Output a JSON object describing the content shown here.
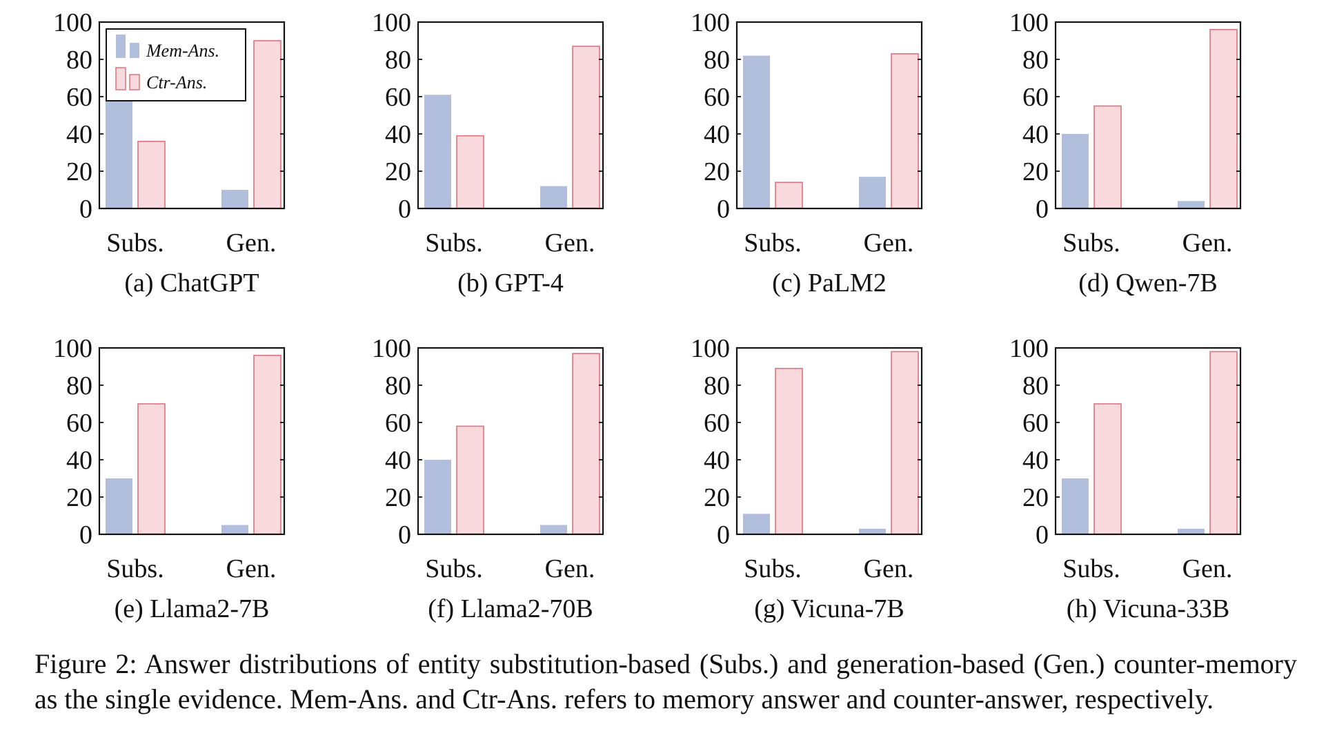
{
  "legend": {
    "mem_label": "Mem-Ans.",
    "ctr_label": "Ctr-Ans.",
    "mem_color": "#b2bfdc",
    "ctr_fill": "#f8d9dd",
    "ctr_stroke": "#e0717d"
  },
  "chart_data": [
    {
      "type": "bar",
      "subcaption": "(a) ChatGPT",
      "categories": [
        "Subs.",
        "Gen."
      ],
      "ylim": [
        0,
        100
      ],
      "yticks": [
        0,
        20,
        40,
        60,
        80,
        100
      ],
      "series": [
        {
          "name": "Mem-Ans.",
          "values": [
            94,
            10
          ]
        },
        {
          "name": "Ctr-Ans.",
          "values": [
            36,
            90
          ]
        }
      ],
      "legend": "top-left"
    },
    {
      "type": "bar",
      "subcaption": "(b) GPT-4",
      "categories": [
        "Subs.",
        "Gen."
      ],
      "ylim": [
        0,
        100
      ],
      "yticks": [
        0,
        20,
        40,
        60,
        80,
        100
      ],
      "series": [
        {
          "name": "Mem-Ans.",
          "values": [
            61,
            12
          ]
        },
        {
          "name": "Ctr-Ans.",
          "values": [
            39,
            87
          ]
        }
      ]
    },
    {
      "type": "bar",
      "subcaption": "(c) PaLM2",
      "categories": [
        "Subs.",
        "Gen."
      ],
      "ylim": [
        0,
        100
      ],
      "yticks": [
        0,
        20,
        40,
        60,
        80,
        100
      ],
      "series": [
        {
          "name": "Mem-Ans.",
          "values": [
            82,
            17
          ]
        },
        {
          "name": "Ctr-Ans.",
          "values": [
            14,
            83
          ]
        }
      ]
    },
    {
      "type": "bar",
      "subcaption": "(d) Qwen-7B",
      "categories": [
        "Subs.",
        "Gen."
      ],
      "ylim": [
        0,
        100
      ],
      "yticks": [
        0,
        20,
        40,
        60,
        80,
        100
      ],
      "series": [
        {
          "name": "Mem-Ans.",
          "values": [
            40,
            4
          ]
        },
        {
          "name": "Ctr-Ans.",
          "values": [
            55,
            96
          ]
        }
      ]
    },
    {
      "type": "bar",
      "subcaption": "(e) Llama2-7B",
      "categories": [
        "Subs.",
        "Gen."
      ],
      "ylim": [
        0,
        100
      ],
      "yticks": [
        0,
        20,
        40,
        60,
        80,
        100
      ],
      "series": [
        {
          "name": "Mem-Ans.",
          "values": [
            30,
            5
          ]
        },
        {
          "name": "Ctr-Ans.",
          "values": [
            70,
            96
          ]
        }
      ]
    },
    {
      "type": "bar",
      "subcaption": "(f) Llama2-70B",
      "categories": [
        "Subs.",
        "Gen."
      ],
      "ylim": [
        0,
        100
      ],
      "yticks": [
        0,
        20,
        40,
        60,
        80,
        100
      ],
      "series": [
        {
          "name": "Mem-Ans.",
          "values": [
            40,
            5
          ]
        },
        {
          "name": "Ctr-Ans.",
          "values": [
            58,
            97
          ]
        }
      ]
    },
    {
      "type": "bar",
      "subcaption": "(g) Vicuna-7B",
      "categories": [
        "Subs.",
        "Gen."
      ],
      "ylim": [
        0,
        100
      ],
      "yticks": [
        0,
        20,
        40,
        60,
        80,
        100
      ],
      "series": [
        {
          "name": "Mem-Ans.",
          "values": [
            11,
            3
          ]
        },
        {
          "name": "Ctr-Ans.",
          "values": [
            89,
            98
          ]
        }
      ]
    },
    {
      "type": "bar",
      "subcaption": "(h) Vicuna-33B",
      "categories": [
        "Subs.",
        "Gen."
      ],
      "ylim": [
        0,
        100
      ],
      "yticks": [
        0,
        20,
        40,
        60,
        80,
        100
      ],
      "series": [
        {
          "name": "Mem-Ans.",
          "values": [
            30,
            3
          ]
        },
        {
          "name": "Ctr-Ans.",
          "values": [
            70,
            98
          ]
        }
      ]
    }
  ],
  "caption": "Figure 2:  Answer distributions of entity substitution-based (Subs.)  and generation-based (Gen.) counter-memory as the single evidence.  Mem-Ans. and Ctr-Ans. refers to memory answer and counter-answer, respectively."
}
